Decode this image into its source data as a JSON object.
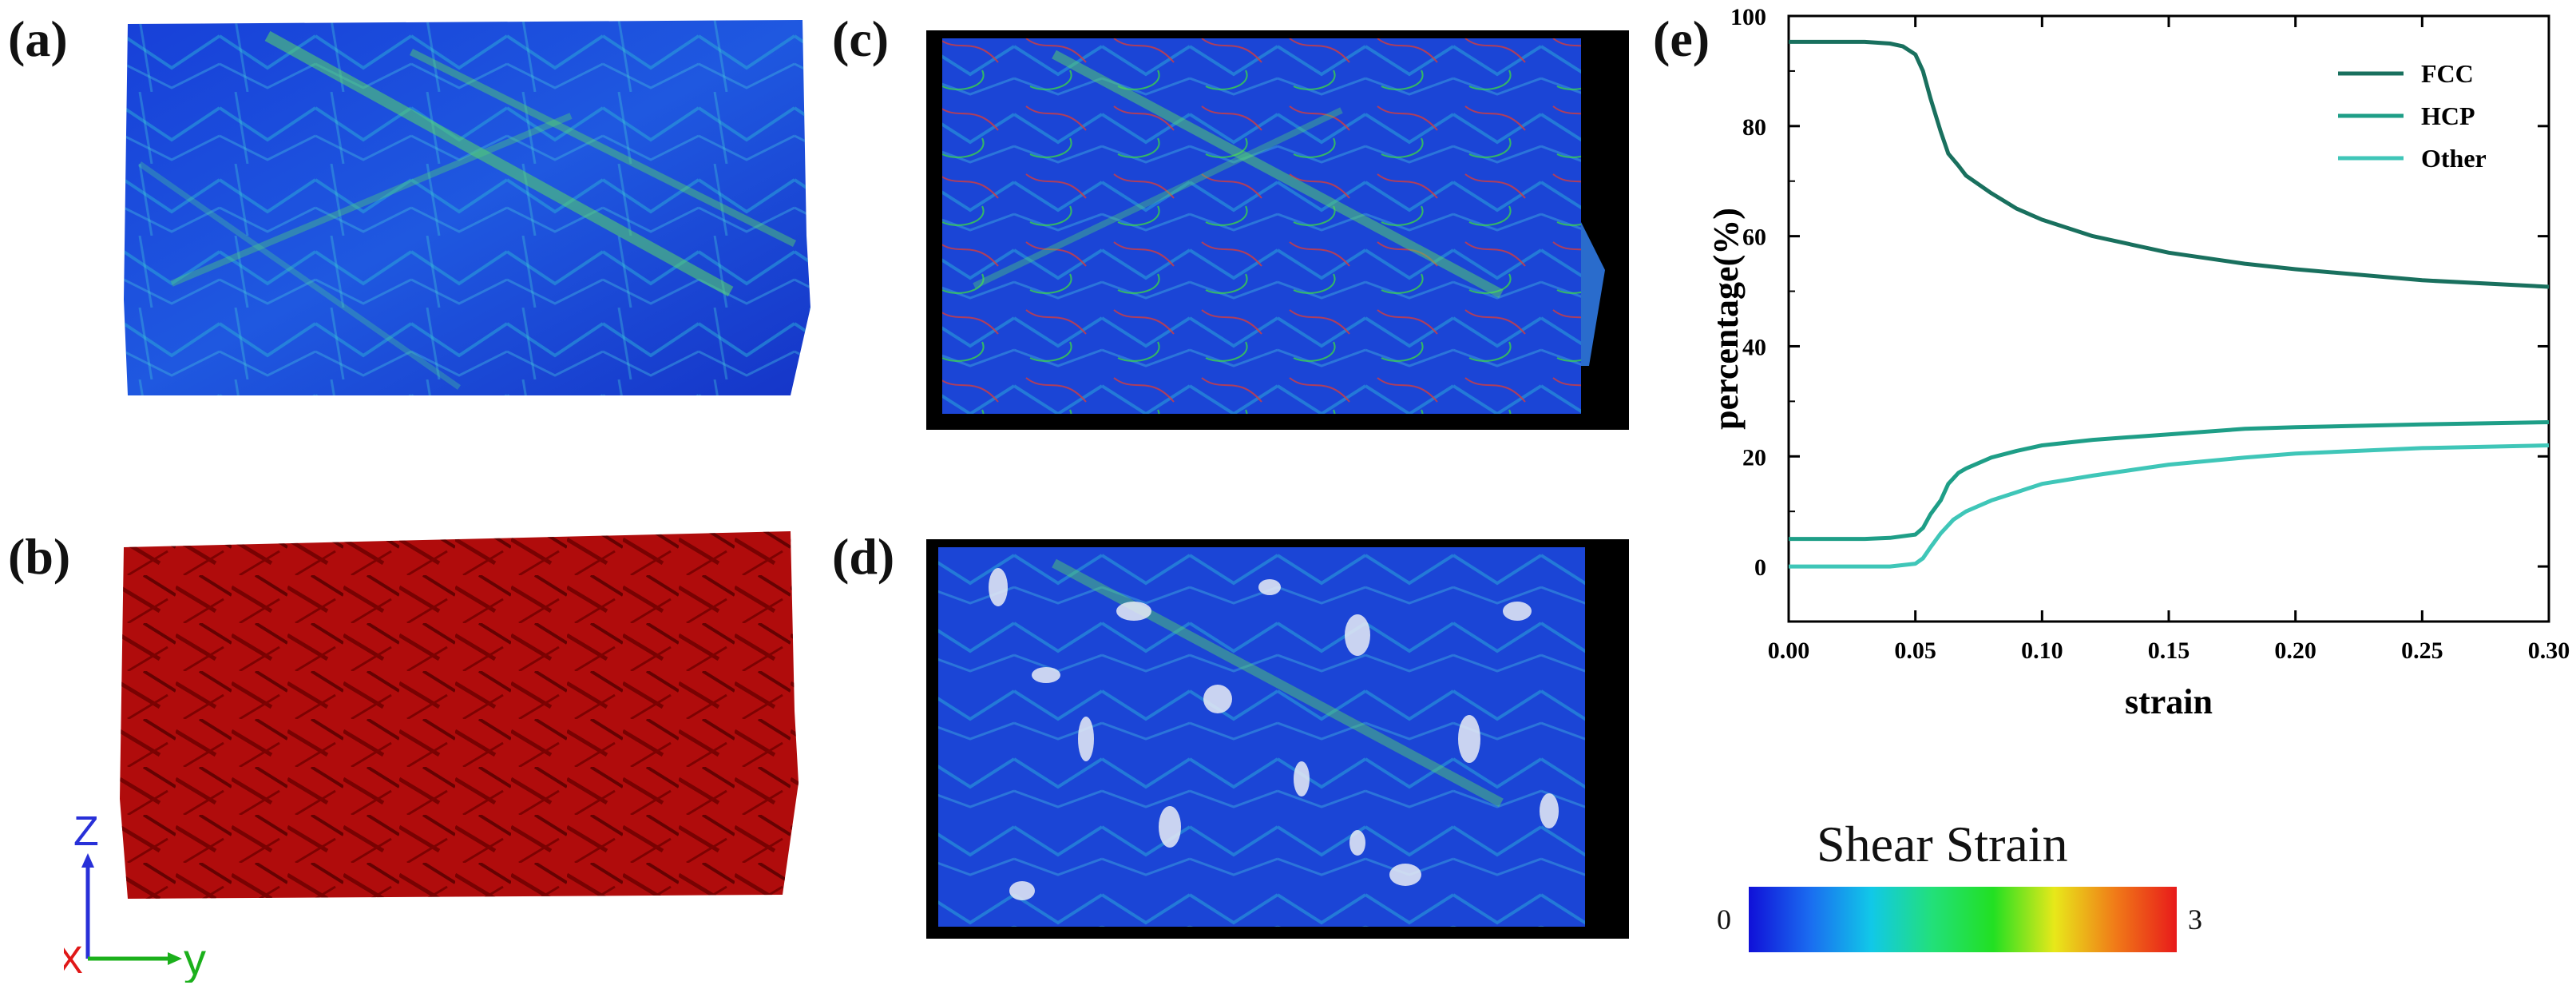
{
  "panels": {
    "a": "(a)",
    "b": "(b)",
    "c": "(c)",
    "d": "(d)",
    "e": "(e)"
  },
  "axes_indicator": {
    "z": "Z",
    "x": "X",
    "y": "y"
  },
  "colorbar": {
    "title": "Shear Strain",
    "min_label": "0",
    "max_label": "3",
    "colors": [
      "#1010d8",
      "#1a6cf0",
      "#11c8e8",
      "#22e07a",
      "#22e022",
      "#e8e81a",
      "#f07a18",
      "#e81a1a"
    ]
  },
  "chart_data": {
    "type": "line",
    "xlabel": "strain",
    "ylabel": "percentage(%)",
    "xlim": [
      0.0,
      0.3
    ],
    "ylim": [
      -10,
      100
    ],
    "xticks": [
      "0.00",
      "0.05",
      "0.10",
      "0.15",
      "0.20",
      "0.25",
      "0.30"
    ],
    "yticks": [
      "0",
      "20",
      "40",
      "60",
      "80",
      "100"
    ],
    "legend_position": "top-right",
    "series": [
      {
        "name": "FCC",
        "color": "#19705e",
        "x": [
          0.0,
          0.03,
          0.04,
          0.045,
          0.05,
          0.053,
          0.056,
          0.06,
          0.063,
          0.067,
          0.07,
          0.08,
          0.09,
          0.1,
          0.12,
          0.15,
          0.18,
          0.2,
          0.25,
          0.3
        ],
        "y": [
          95.3,
          95.3,
          95.0,
          94.5,
          93.0,
          90.0,
          85.0,
          79.0,
          75.0,
          72.8,
          71.0,
          67.8,
          65.0,
          63.0,
          60.0,
          57.0,
          55.0,
          54.0,
          52.0,
          50.8
        ]
      },
      {
        "name": "HCP",
        "color": "#1e9e87",
        "x": [
          0.0,
          0.03,
          0.04,
          0.05,
          0.053,
          0.056,
          0.06,
          0.063,
          0.067,
          0.07,
          0.08,
          0.09,
          0.1,
          0.12,
          0.15,
          0.18,
          0.2,
          0.25,
          0.3
        ],
        "y": [
          5.0,
          5.0,
          5.2,
          5.8,
          7.0,
          9.5,
          12.0,
          15.0,
          17.0,
          17.8,
          19.8,
          21.0,
          22.0,
          23.0,
          24.0,
          25.0,
          25.3,
          25.8,
          26.2
        ]
      },
      {
        "name": "Other",
        "color": "#3fc6b8",
        "x": [
          0.0,
          0.04,
          0.05,
          0.053,
          0.056,
          0.06,
          0.065,
          0.07,
          0.08,
          0.09,
          0.1,
          0.12,
          0.15,
          0.18,
          0.2,
          0.25,
          0.3
        ],
        "y": [
          0.0,
          0.0,
          0.5,
          1.5,
          3.5,
          6.0,
          8.5,
          10.0,
          12.0,
          13.5,
          15.0,
          16.5,
          18.5,
          19.8,
          20.5,
          21.5,
          22.0
        ]
      }
    ]
  }
}
